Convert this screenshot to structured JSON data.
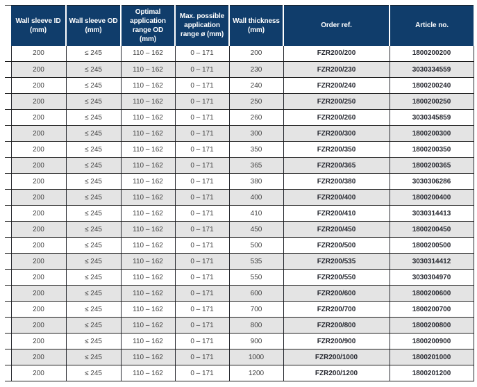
{
  "table": {
    "columns": [
      {
        "key": "wall_sleeve_id",
        "label": "Wall sleeve ID\n(mm)"
      },
      {
        "key": "wall_sleeve_od",
        "label": "Wall sleeve OD\n(mm)"
      },
      {
        "key": "optimal_range_od",
        "label": "Optimal\napplication\nrange OD\n(mm)"
      },
      {
        "key": "max_range",
        "label": "Max. possible\napplication\nrange ø (mm)"
      },
      {
        "key": "wall_thickness",
        "label": "Wall thickness\n(mm)"
      },
      {
        "key": "order_ref",
        "label": "Order ref."
      },
      {
        "key": "article_no",
        "label": "Article no."
      }
    ],
    "rows": [
      {
        "wall_sleeve_id": "200",
        "wall_sleeve_od": "≤ 245",
        "optimal_range_od": "110 – 162",
        "max_range": "0 – 171",
        "wall_thickness": "200",
        "order_ref": "FZR200/200",
        "article_no": "1800200200"
      },
      {
        "wall_sleeve_id": "200",
        "wall_sleeve_od": "≤ 245",
        "optimal_range_od": "110 – 162",
        "max_range": "0 – 171",
        "wall_thickness": "230",
        "order_ref": "FZR200/230",
        "article_no": "3030334559"
      },
      {
        "wall_sleeve_id": "200",
        "wall_sleeve_od": "≤ 245",
        "optimal_range_od": "110 – 162",
        "max_range": "0 – 171",
        "wall_thickness": "240",
        "order_ref": "FZR200/240",
        "article_no": "1800200240"
      },
      {
        "wall_sleeve_id": "200",
        "wall_sleeve_od": "≤ 245",
        "optimal_range_od": "110 – 162",
        "max_range": "0 – 171",
        "wall_thickness": "250",
        "order_ref": "FZR200/250",
        "article_no": "1800200250"
      },
      {
        "wall_sleeve_id": "200",
        "wall_sleeve_od": "≤ 245",
        "optimal_range_od": "110 – 162",
        "max_range": "0 – 171",
        "wall_thickness": "260",
        "order_ref": "FZR200/260",
        "article_no": "3030345859"
      },
      {
        "wall_sleeve_id": "200",
        "wall_sleeve_od": "≤ 245",
        "optimal_range_od": "110 – 162",
        "max_range": "0 – 171",
        "wall_thickness": "300",
        "order_ref": "FZR200/300",
        "article_no": "1800200300"
      },
      {
        "wall_sleeve_id": "200",
        "wall_sleeve_od": "≤ 245",
        "optimal_range_od": "110 – 162",
        "max_range": "0 – 171",
        "wall_thickness": "350",
        "order_ref": "FZR200/350",
        "article_no": "1800200350"
      },
      {
        "wall_sleeve_id": "200",
        "wall_sleeve_od": "≤ 245",
        "optimal_range_od": "110 – 162",
        "max_range": "0 – 171",
        "wall_thickness": "365",
        "order_ref": "FZR200/365",
        "article_no": "1800200365"
      },
      {
        "wall_sleeve_id": "200",
        "wall_sleeve_od": "≤ 245",
        "optimal_range_od": "110 – 162",
        "max_range": "0 – 171",
        "wall_thickness": "380",
        "order_ref": "FZR200/380",
        "article_no": "3030306286"
      },
      {
        "wall_sleeve_id": "200",
        "wall_sleeve_od": "≤ 245",
        "optimal_range_od": "110 – 162",
        "max_range": "0 – 171",
        "wall_thickness": "400",
        "order_ref": "FZR200/400",
        "article_no": "1800200400"
      },
      {
        "wall_sleeve_id": "200",
        "wall_sleeve_od": "≤ 245",
        "optimal_range_od": "110 – 162",
        "max_range": "0 – 171",
        "wall_thickness": "410",
        "order_ref": "FZR200/410",
        "article_no": "3030314413"
      },
      {
        "wall_sleeve_id": "200",
        "wall_sleeve_od": "≤ 245",
        "optimal_range_od": "110 – 162",
        "max_range": "0 – 171",
        "wall_thickness": "450",
        "order_ref": "FZR200/450",
        "article_no": "1800200450"
      },
      {
        "wall_sleeve_id": "200",
        "wall_sleeve_od": "≤ 245",
        "optimal_range_od": "110 – 162",
        "max_range": "0 – 171",
        "wall_thickness": "500",
        "order_ref": "FZR200/500",
        "article_no": "1800200500"
      },
      {
        "wall_sleeve_id": "200",
        "wall_sleeve_od": "≤ 245",
        "optimal_range_od": "110 – 162",
        "max_range": "0 – 171",
        "wall_thickness": "535",
        "order_ref": "FZR200/535",
        "article_no": "3030314412"
      },
      {
        "wall_sleeve_id": "200",
        "wall_sleeve_od": "≤ 245",
        "optimal_range_od": "110 – 162",
        "max_range": "0 – 171",
        "wall_thickness": "550",
        "order_ref": "FZR200/550",
        "article_no": "3030304970"
      },
      {
        "wall_sleeve_id": "200",
        "wall_sleeve_od": "≤ 245",
        "optimal_range_od": "110 – 162",
        "max_range": "0 – 171",
        "wall_thickness": "600",
        "order_ref": "FZR200/600",
        "article_no": "1800200600"
      },
      {
        "wall_sleeve_id": "200",
        "wall_sleeve_od": "≤ 245",
        "optimal_range_od": "110 – 162",
        "max_range": "0 – 171",
        "wall_thickness": "700",
        "order_ref": "FZR200/700",
        "article_no": "1800200700"
      },
      {
        "wall_sleeve_id": "200",
        "wall_sleeve_od": "≤ 245",
        "optimal_range_od": "110 – 162",
        "max_range": "0 – 171",
        "wall_thickness": "800",
        "order_ref": "FZR200/800",
        "article_no": "1800200800"
      },
      {
        "wall_sleeve_id": "200",
        "wall_sleeve_od": "≤ 245",
        "optimal_range_od": "110 – 162",
        "max_range": "0 – 171",
        "wall_thickness": "900",
        "order_ref": "FZR200/900",
        "article_no": "1800200900"
      },
      {
        "wall_sleeve_id": "200",
        "wall_sleeve_od": "≤ 245",
        "optimal_range_od": "110 – 162",
        "max_range": "0 – 171",
        "wall_thickness": "1000",
        "order_ref": "FZR200/1000",
        "article_no": "1800201000"
      },
      {
        "wall_sleeve_id": "200",
        "wall_sleeve_od": "≤ 245",
        "optimal_range_od": "110 – 162",
        "max_range": "0 – 171",
        "wall_thickness": "1200",
        "order_ref": "FZR200/1200",
        "article_no": "1800201200"
      }
    ]
  },
  "colors": {
    "header_bg": "#103d6b",
    "header_text": "#ffffff",
    "row_alt_bg": "#e4e4e4",
    "rule": "#191919",
    "body_text": "#3f3f3f",
    "bold_text": "#262830"
  }
}
